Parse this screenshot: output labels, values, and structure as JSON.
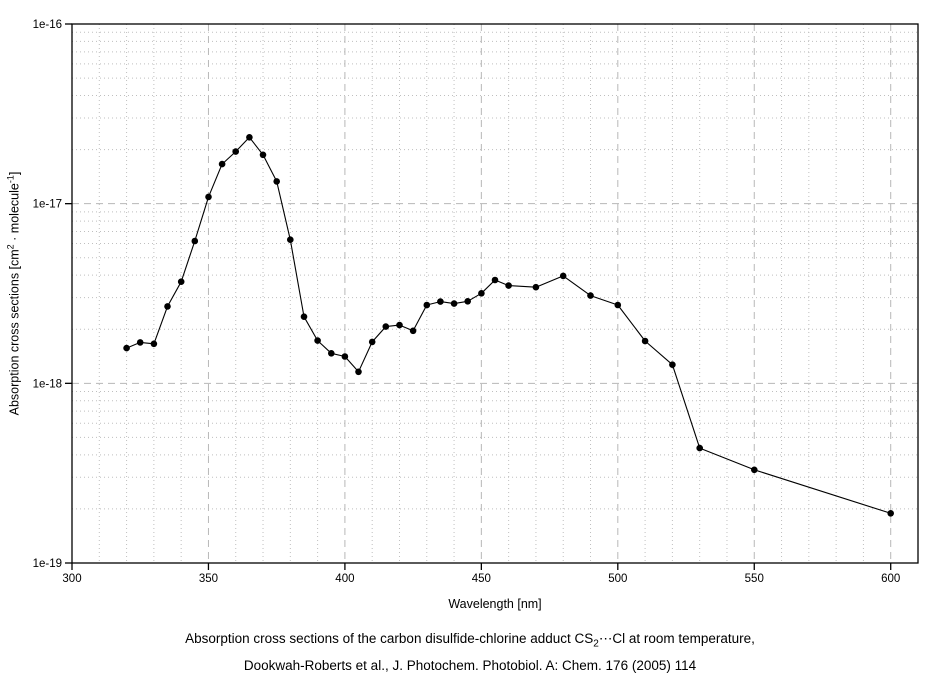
{
  "axes": {
    "x_label": "Wavelength [nm]",
    "y_title": {
      "p1": "Absorption cross sections [cm",
      "sup1": "2",
      "p2": " · molecule",
      "sup2": "-1",
      "p3": "]"
    }
  },
  "caption": {
    "line1_pre": "Absorption cross sections of the carbon disulfide-chlorine adduct CS",
    "line1_sub": "2",
    "line1_post": "⋯Cl at room temperature,",
    "line2": "Dookwah-Roberts et al., J. Photochem. Photobiol. A: Chem. 176 (2005) 114"
  },
  "chart_data": {
    "type": "line",
    "title": "",
    "xlabel": "Wavelength [nm]",
    "ylabel": "Absorption cross sections [cm^2 molecule^-1]",
    "xlim": [
      300,
      610
    ],
    "ylim": [
      1e-19,
      1e-16
    ],
    "yscale": "log",
    "grid": true,
    "legend_position": "none",
    "marker": "filled-circle",
    "x_major_step": 50,
    "x_minor_step": 10,
    "x_major_ticks": [
      300,
      350,
      400,
      450,
      500,
      550,
      600
    ],
    "y_tick_values": [
      1e-16,
      1e-17,
      1e-18,
      1e-19
    ],
    "y_tick_labels": [
      "1e-16",
      "1e-17",
      "1e-18",
      "1e-19"
    ],
    "style": {
      "line_color": "#000000",
      "marker_color": "#000000",
      "frame_color": "#000000",
      "grid_major_color": "#b8b8b8",
      "grid_minor_color": "#bfbfbf",
      "background": "#ffffff"
    },
    "series": [
      {
        "name": "CS2⋯Cl absorption cross section",
        "x": [
          320,
          325,
          330,
          335,
          340,
          345,
          350,
          355,
          360,
          365,
          370,
          375,
          380,
          385,
          390,
          395,
          400,
          405,
          410,
          415,
          420,
          425,
          430,
          435,
          440,
          445,
          450,
          455,
          460,
          470,
          480,
          490,
          500,
          510,
          520,
          530,
          550,
          600
        ],
        "y": [
          1.57e-18,
          1.69e-18,
          1.66e-18,
          2.68e-18,
          3.68e-18,
          6.2e-18,
          1.09e-17,
          1.66e-17,
          1.95e-17,
          2.34e-17,
          1.87e-17,
          1.33e-17,
          6.3e-18,
          2.35e-18,
          1.73e-18,
          1.47e-18,
          1.41e-18,
          1.16e-18,
          1.7e-18,
          2.07e-18,
          2.11e-18,
          1.96e-18,
          2.73e-18,
          2.85e-18,
          2.78e-18,
          2.86e-18,
          3.17e-18,
          3.76e-18,
          3.5e-18,
          3.43e-18,
          3.96e-18,
          3.08e-18,
          2.73e-18,
          1.72e-18,
          1.27e-18,
          4.36e-19,
          3.3e-19,
          1.89e-19
        ]
      }
    ]
  }
}
